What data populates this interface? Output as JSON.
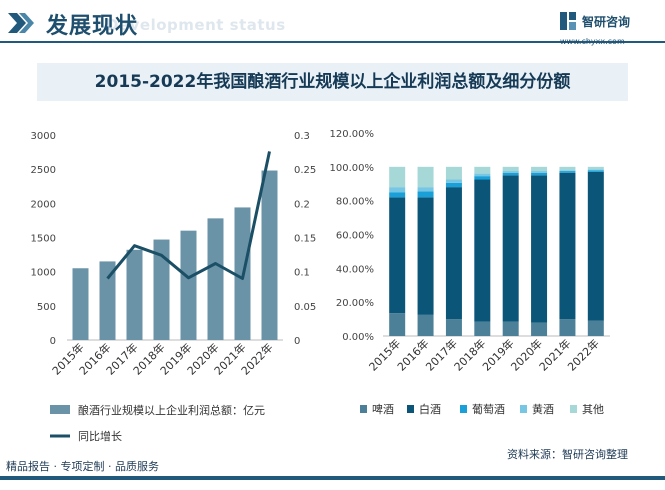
{
  "header": {
    "title": "发展现状",
    "subtitle": "Development status"
  },
  "logo": {
    "name": "智研咨询",
    "url": "www.chyxx.com"
  },
  "banner_title": "2015-2022年我国酿酒行业规模以上企业利润总额及细分份额",
  "footer": {
    "tagline": "精品报告 · 专项定制 · 品质服务",
    "source": "资料来源：智研咨询整理"
  },
  "colors": {
    "brand": "#21597d",
    "bar": "#6a93a8",
    "line": "#1b4f66"
  },
  "chart_data": [
    {
      "type": "bar",
      "categories": [
        "2015年",
        "2016年",
        "2017年",
        "2018年",
        "2019年",
        "2020年",
        "2021年",
        "2022年"
      ],
      "series": [
        {
          "name": "酿酒行业规模以上企业利润总额：亿元",
          "axis": "left",
          "type": "bar",
          "values": [
            1050,
            1150,
            1320,
            1470,
            1600,
            1780,
            1940,
            2480
          ]
        },
        {
          "name": "同比增长",
          "axis": "right",
          "type": "line",
          "values": [
            null,
            0.09,
            0.138,
            0.124,
            0.091,
            0.112,
            0.09,
            0.276
          ]
        }
      ],
      "ylim": [
        0,
        3000
      ],
      "yticks": [
        "0",
        "500",
        "1000",
        "1500",
        "2000",
        "2500",
        "3000"
      ],
      "y2lim": [
        0,
        0.3
      ],
      "y2ticks": [
        "0",
        "0.05",
        "0.1",
        "0.15",
        "0.2",
        "0.25",
        "0.3"
      ],
      "legend_position": "bottom"
    },
    {
      "type": "bar",
      "stacked": true,
      "categories": [
        "2015年",
        "2016年",
        "2017年",
        "2018年",
        "2019年",
        "2020年",
        "2021年",
        "2022年"
      ],
      "series": [
        {
          "name": "啤酒",
          "color": "#4c8098",
          "values": [
            13.5,
            12.5,
            10.0,
            8.5,
            8.5,
            8.0,
            10.0,
            9.0
          ]
        },
        {
          "name": "白酒",
          "color": "#0b5578",
          "values": [
            68.5,
            69.5,
            78.0,
            84.0,
            86.5,
            87.0,
            86.5,
            88.0
          ]
        },
        {
          "name": "葡萄酒",
          "color": "#1aa0d8",
          "values": [
            3.0,
            3.5,
            2.5,
            2.0,
            1.5,
            1.5,
            1.0,
            1.0
          ]
        },
        {
          "name": "黄酒",
          "color": "#77c6e4",
          "values": [
            3.0,
            2.5,
            2.0,
            1.5,
            1.0,
            1.0,
            0.5,
            0.5
          ]
        },
        {
          "name": "其他",
          "color": "#a7d8d8",
          "values": [
            12.0,
            12.0,
            7.5,
            4.0,
            2.5,
            2.5,
            2.0,
            1.5
          ]
        }
      ],
      "ylim": [
        0,
        120
      ],
      "yticks": [
        "0.00%",
        "20.00%",
        "40.00%",
        "60.00%",
        "80.00%",
        "100.00%",
        "120.00%"
      ],
      "legend_position": "bottom"
    }
  ]
}
